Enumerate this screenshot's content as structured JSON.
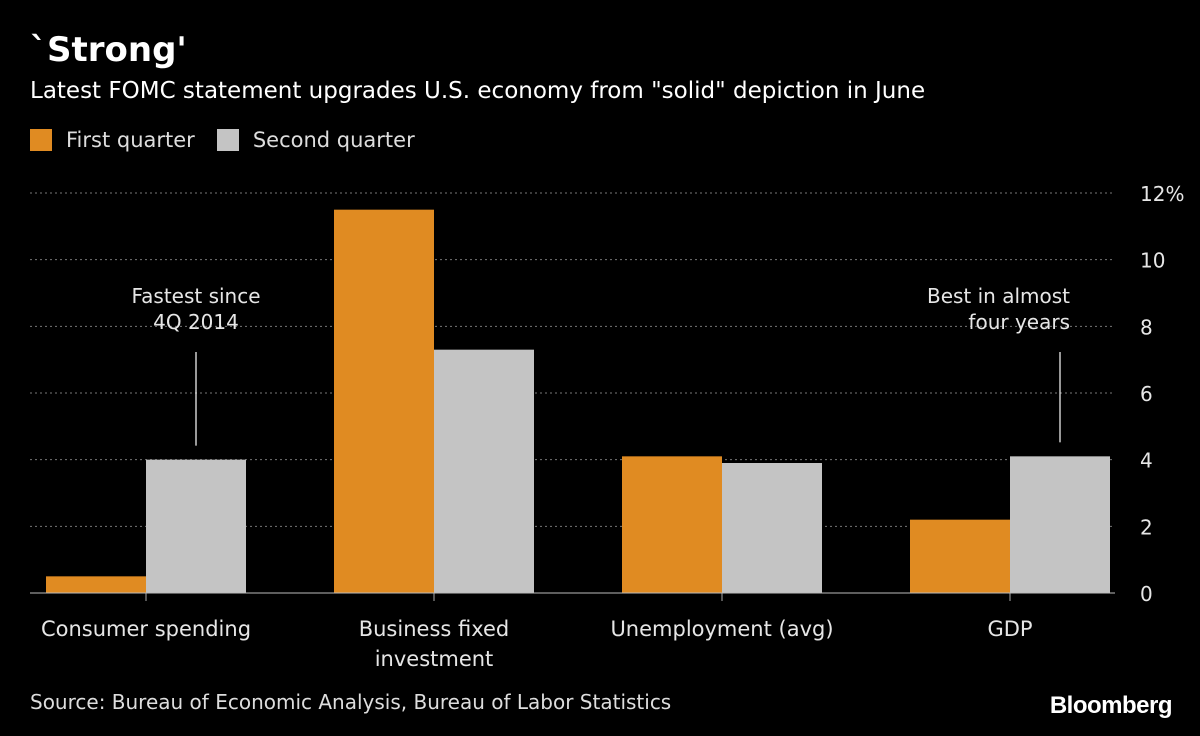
{
  "title": "`Strong'",
  "subtitle": "Latest FOMC statement upgrades U.S. economy from \"solid\" depiction in June",
  "source": "Source: Bureau of Economic Analysis, Bureau of Labor Statistics",
  "logo": "Bloomberg",
  "chart_data": {
    "type": "bar",
    "categories": [
      [
        "Consumer spending"
      ],
      [
        "Business fixed",
        "investment"
      ],
      [
        "Unemployment (avg)"
      ],
      [
        "GDP"
      ]
    ],
    "series": [
      {
        "name": "First quarter",
        "color": "#e08b22",
        "values": [
          0.5,
          11.5,
          4.1,
          2.2
        ]
      },
      {
        "name": "Second quarter",
        "color": "#c4c4c4",
        "values": [
          4.0,
          7.3,
          3.9,
          4.1
        ]
      }
    ],
    "ylim": [
      0,
      12
    ],
    "yticks": [
      "0",
      "2",
      "4",
      "6",
      "8",
      "10",
      "12%"
    ],
    "ytick_values": [
      0,
      2,
      4,
      6,
      8,
      10,
      12
    ],
    "grid": true,
    "legend_placement": "top-left",
    "yaxis_side": "right",
    "annotations": [
      {
        "lines": [
          "Fastest since",
          "4Q 2014"
        ],
        "category": 0,
        "series": 1
      },
      {
        "lines": [
          "Best in almost",
          "four years"
        ],
        "category": 3,
        "series": 1
      }
    ]
  }
}
